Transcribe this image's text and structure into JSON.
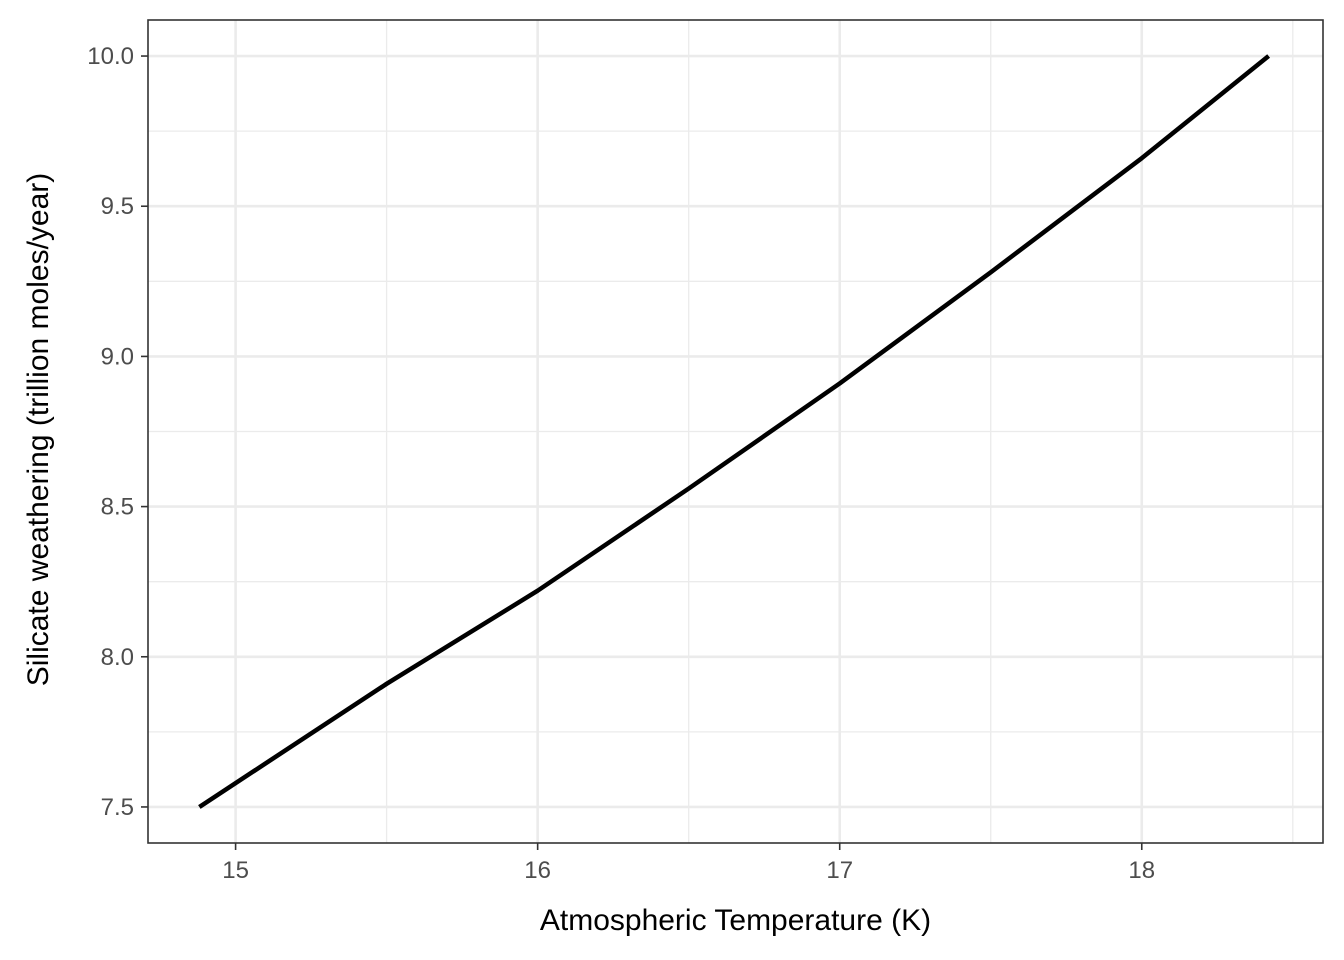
{
  "chart_data": {
    "type": "line",
    "title": "",
    "xlabel": "Atmospheric Temperature (K)",
    "ylabel": "Silicate weathering (trillion moles/year)",
    "xlim": [
      14.71,
      18.6
    ],
    "ylim": [
      7.38,
      10.12
    ],
    "x_ticks": [
      15,
      16,
      17,
      18
    ],
    "x_tick_labels": [
      "15",
      "16",
      "17",
      "18"
    ],
    "y_ticks": [
      7.5,
      8.0,
      8.5,
      9.0,
      9.5,
      10.0
    ],
    "y_tick_labels": [
      "7.5",
      "8.0",
      "8.5",
      "9.0",
      "9.5",
      "10.0"
    ],
    "grid": true,
    "legend": "none",
    "series": [
      {
        "color": "#000000",
        "x": [
          14.88,
          15.5,
          16.0,
          16.5,
          17.0,
          17.5,
          18.0,
          18.42
        ],
        "y": [
          7.5,
          7.91,
          8.22,
          8.56,
          8.91,
          9.28,
          9.66,
          10.0
        ]
      }
    ],
    "colors": {
      "panel_background": "#ffffff",
      "grid_major": "#ebebeb",
      "grid_minor": "#ebebeb",
      "panel_border": "#333333",
      "tick_text": "#4d4d4d",
      "title_text": "#000000"
    }
  }
}
